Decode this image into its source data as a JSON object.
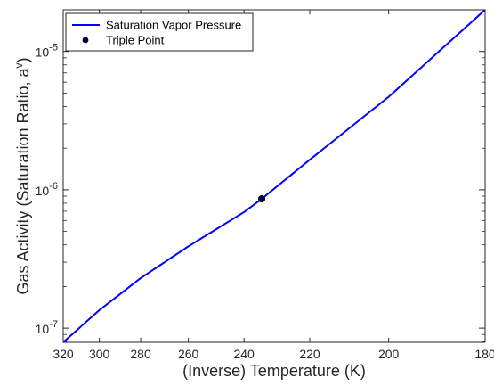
{
  "chart_data": {
    "type": "line",
    "title": "",
    "xlabel": "(Inverse) Temperature (K)",
    "ylabel": "Gas Activity (Saturation Ratio, a",
    "ylabel_superscript": "v",
    "ylabel_suffix": ")",
    "x_axis": {
      "scale": "inverse",
      "xlim": [
        320,
        180
      ],
      "ticks": [
        320,
        300,
        280,
        260,
        240,
        220,
        200,
        180
      ],
      "tick_labels": [
        "320",
        "300",
        "280",
        "260",
        "240",
        "220",
        "200",
        "180"
      ]
    },
    "y_axis": {
      "scale": "log",
      "ylim": [
        7.9e-08,
        2e-05
      ],
      "major_ticks": [
        {
          "value": 1e-07,
          "base": "10",
          "exp": "-7"
        },
        {
          "value": 1e-06,
          "base": "10",
          "exp": "-6"
        },
        {
          "value": 1e-05,
          "base": "10",
          "exp": "-5"
        }
      ]
    },
    "grid": false,
    "legend": {
      "placement": "top-left",
      "entries": [
        {
          "label": "Saturation Vapor Pressure",
          "marker": "line",
          "color": "#0000ff"
        },
        {
          "label": "Triple Point",
          "marker": "dot",
          "color": "#000033"
        }
      ]
    },
    "series": [
      {
        "name": "Saturation Vapor Pressure",
        "color": "#0000ff",
        "x": [
          320,
          300,
          280,
          260,
          240,
          234.26,
          220,
          200,
          180
        ],
        "y": [
          7.9e-08,
          1.35e-07,
          2.3e-07,
          3.9e-07,
          6.9e-07,
          8.6e-07,
          1.65e-06,
          4.7e-06,
          2e-05
        ]
      }
    ],
    "points": [
      {
        "name": "Triple Point",
        "x": 234.26,
        "y": 8.6e-07,
        "color": "#000033"
      }
    ]
  }
}
